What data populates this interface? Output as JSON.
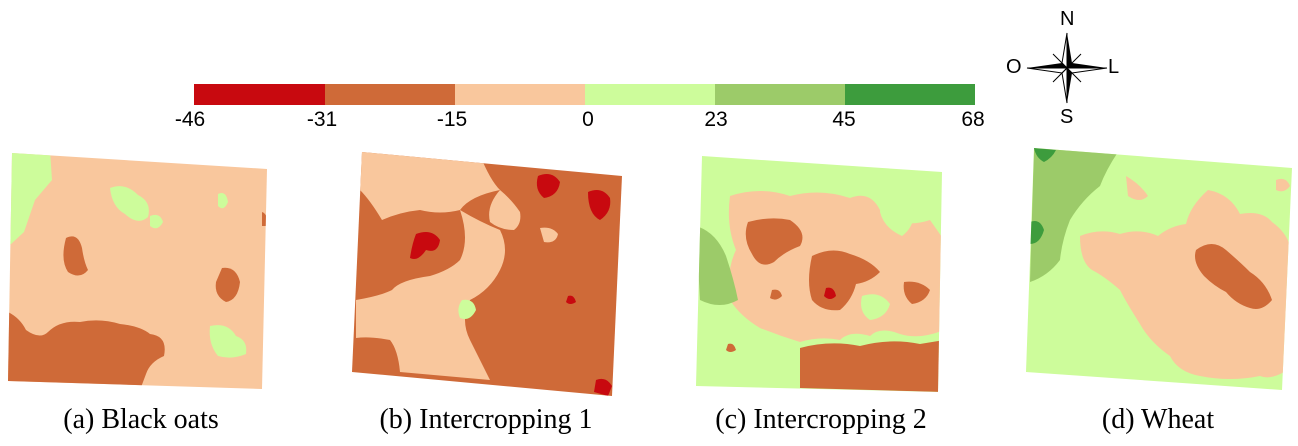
{
  "legend": {
    "ticks": [
      "-46",
      "-31",
      "-15",
      "0",
      "23",
      "45",
      "68"
    ],
    "colors": [
      "#c8090f",
      "#cf6a38",
      "#f9c79d",
      "#cdfc9b",
      "#9ccb69",
      "#3d9c3d"
    ]
  },
  "compass": {
    "north": "N",
    "south": "S",
    "west": "O",
    "east": "L"
  },
  "panels": [
    {
      "caption": "(a) Black oats"
    },
    {
      "caption": "(b) Intercropping 1"
    },
    {
      "caption": "(c) Intercropping 2"
    },
    {
      "caption": "(d) Wheat"
    }
  ]
}
